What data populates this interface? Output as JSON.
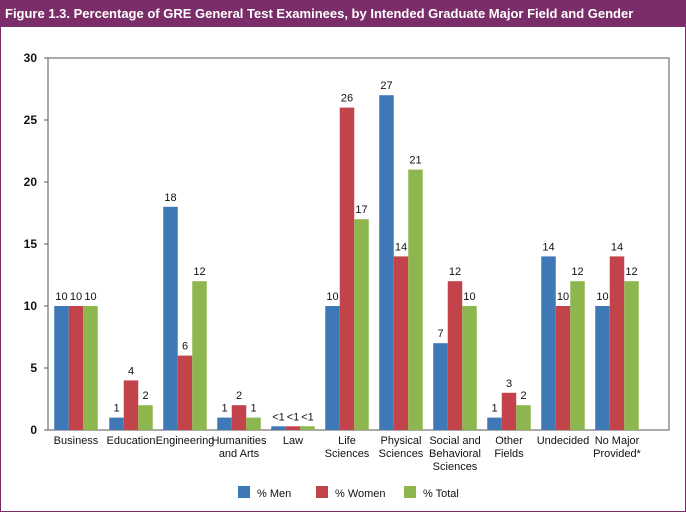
{
  "chart_data": {
    "type": "bar",
    "title": "Figure 1.3. Percentage of GRE General Test Examinees, by Intended Graduate Major Field and Gender",
    "xlabel": "",
    "ylabel": "",
    "ylim": [
      0,
      30
    ],
    "yticks": [
      0,
      5,
      10,
      15,
      20,
      25,
      30
    ],
    "grid": false,
    "legend_position": "bottom-center",
    "categories": [
      [
        "Business"
      ],
      [
        "Education"
      ],
      [
        "Engineering"
      ],
      [
        "Humanities",
        "and Arts"
      ],
      [
        "Law"
      ],
      [
        "Life",
        "Sciences"
      ],
      [
        "Physical",
        "Sciences"
      ],
      [
        "Social and",
        "Behavioral",
        "Sciences"
      ],
      [
        "Other",
        "Fields"
      ],
      [
        "Undecided"
      ],
      [
        "No Major",
        "Provided*"
      ]
    ],
    "series": [
      {
        "name": "% Men",
        "color": "#3e78b6",
        "values": [
          10,
          1,
          18,
          1,
          0.3,
          10,
          27,
          7,
          1,
          14,
          10
        ],
        "labels": [
          "10",
          "1",
          "18",
          "1",
          "<1",
          "10",
          "27",
          "7",
          "1",
          "14",
          "10"
        ]
      },
      {
        "name": "% Women",
        "color": "#c3434a",
        "values": [
          10,
          4,
          6,
          2,
          0.3,
          26,
          14,
          12,
          3,
          10,
          14
        ],
        "labels": [
          "10",
          "4",
          "6",
          "2",
          "<1",
          "26",
          "14",
          "12",
          "3",
          "10",
          "14"
        ]
      },
      {
        "name": "% Total",
        "color": "#8db64e",
        "values": [
          10,
          2,
          12,
          1,
          0.3,
          17,
          21,
          10,
          2,
          12,
          12
        ],
        "labels": [
          "10",
          "2",
          "12",
          "1",
          "<1",
          "17",
          "21",
          "10",
          "2",
          "12",
          "12"
        ]
      }
    ]
  },
  "colors": {
    "title_bar": "#7a2d69",
    "axis": "#555555"
  }
}
